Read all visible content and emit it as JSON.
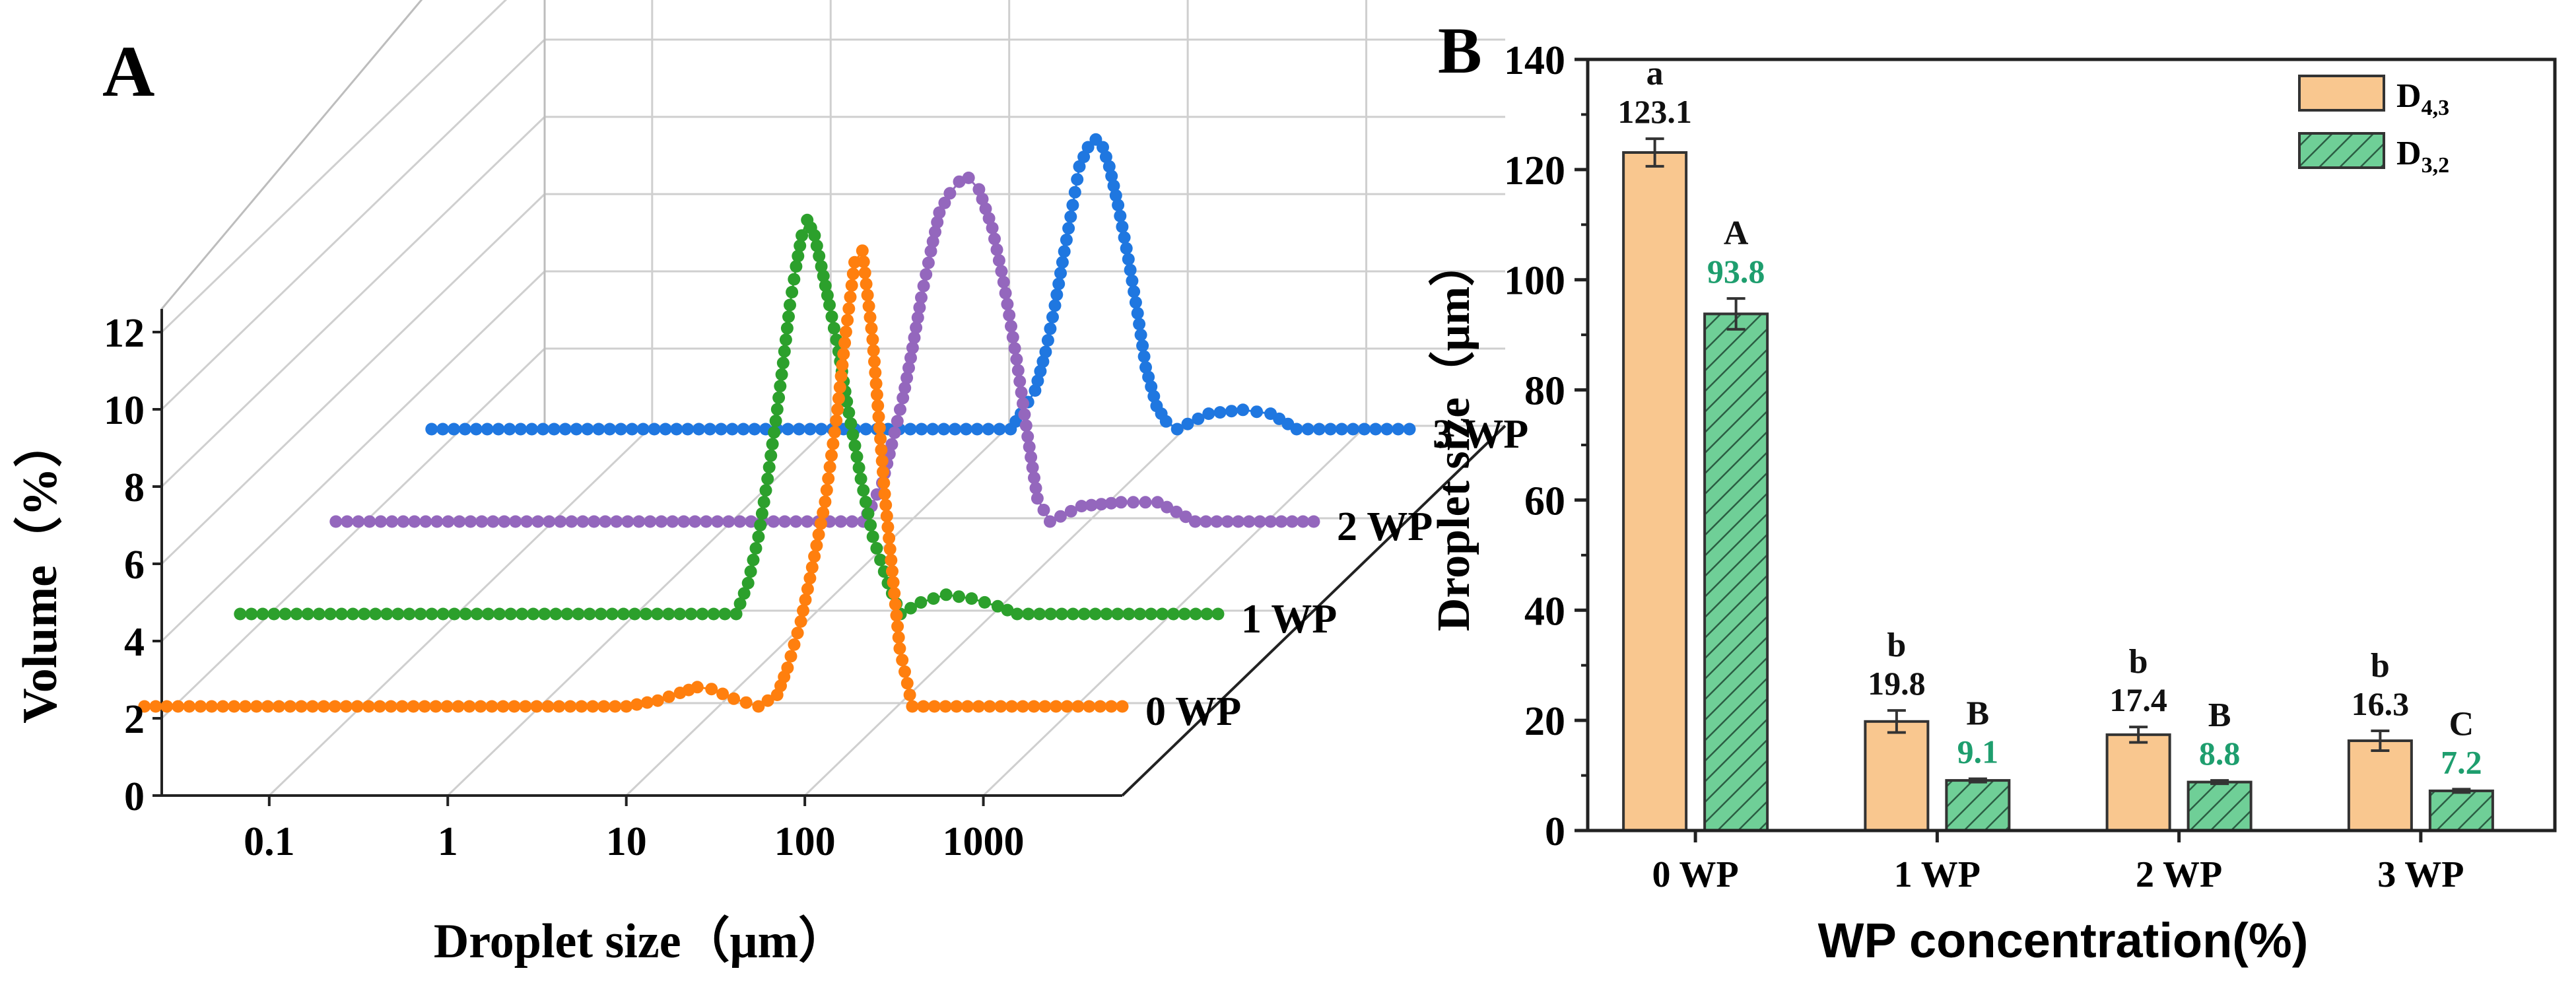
{
  "panel_a": {
    "letter": "A",
    "chart_data": {
      "type": "line",
      "title": "",
      "xlabel": "Droplet size（μm）",
      "ylabel": "Volume（%）",
      "x_scale": "log",
      "x_ticks": [
        "0.1",
        "1",
        "10",
        "100",
        "1000"
      ],
      "y_ticks": [
        "0",
        "2",
        "4",
        "6",
        "8",
        "10",
        "12"
      ],
      "ylim": [
        0,
        12
      ],
      "series": [
        {
          "name": "0 WP",
          "color": "#ff7f0e",
          "x": [
            0.02,
            10,
            15,
            20,
            25,
            30,
            40,
            55,
            70,
            80,
            95,
            110,
            130,
            150,
            170,
            190,
            210,
            240,
            280,
            340,
            400,
            6000
          ],
          "y": [
            0,
            0,
            0.15,
            0.35,
            0.5,
            0.45,
            0.2,
            0,
            0.3,
            1.0,
            2.2,
            3.6,
            5.3,
            7.4,
            9.7,
            11.5,
            11.8,
            9.5,
            5.5,
            1.5,
            0,
            0
          ]
        },
        {
          "name": "1 WP",
          "color": "#2ca02c",
          "x": [
            0.02,
            12,
            14,
            16,
            18,
            20,
            22,
            24,
            26,
            28,
            30,
            33,
            36,
            40,
            45,
            50,
            60,
            70,
            85,
            100,
            130,
            180,
            250,
            350,
            450,
            6000
          ],
          "y": [
            0,
            0,
            0.8,
            2.0,
            3.5,
            5.0,
            6.5,
            8.0,
            9.0,
            9.8,
            10.2,
            9.8,
            9.0,
            8.0,
            6.8,
            5.5,
            3.5,
            2.0,
            0.8,
            0,
            0.3,
            0.5,
            0.4,
            0.2,
            0,
            0
          ]
        },
        {
          "name": "2 WP",
          "color": "#9467bd",
          "x": [
            0.02,
            18,
            20,
            23,
            26,
            30,
            34,
            38,
            43,
            48,
            55,
            62,
            70,
            80,
            95,
            110,
            130,
            150,
            170,
            200,
            300,
            500,
            800,
            1300,
            6000
          ],
          "y": [
            0,
            0,
            0.4,
            1.0,
            2.0,
            3.2,
            4.5,
            5.8,
            7.0,
            8.0,
            8.5,
            8.8,
            8.9,
            8.6,
            7.6,
            6.2,
            4.2,
            2.2,
            0.6,
            0,
            0.4,
            0.5,
            0.5,
            0,
            0
          ]
        },
        {
          "name": "3 WP",
          "color": "#1f77e0",
          "x": [
            0.02,
            35,
            40,
            48,
            55,
            62,
            70,
            78,
            85,
            95,
            105,
            115,
            125,
            140,
            160,
            180,
            200,
            230,
            260,
            300,
            450,
            700,
            1000,
            1400,
            6000
          ],
          "y": [
            0,
            0,
            0.4,
            1.0,
            2.0,
            3.2,
            4.6,
            5.8,
            6.8,
            7.3,
            7.5,
            7.3,
            6.8,
            5.8,
            4.4,
            3.0,
            1.6,
            0.6,
            0.2,
            0,
            0.4,
            0.5,
            0.4,
            0,
            0
          ]
        }
      ]
    },
    "series_labels": [
      "0 WP",
      "1 WP",
      "2 WP",
      "3 WP"
    ]
  },
  "panel_b": {
    "letter": "B",
    "chart_data": {
      "type": "bar",
      "title": "",
      "xlabel": "WP concentration(%)",
      "ylabel": "Droplet size（μm）",
      "ylim": [
        0,
        140
      ],
      "y_ticks": [
        "0",
        "20",
        "40",
        "60",
        "80",
        "100",
        "120",
        "140"
      ],
      "categories": [
        "0 WP",
        "1 WP",
        "2 WP",
        "3 WP"
      ],
      "series": [
        {
          "name": "D4,3",
          "legend_main": "D",
          "legend_sub": "4,3",
          "color": "#f9c78f",
          "values": [
            123.1,
            19.8,
            17.4,
            16.3
          ],
          "value_labels": [
            "123.1",
            "19.8",
            "17.4",
            "16.3"
          ],
          "errors": [
            2.5,
            2.0,
            1.4,
            1.8
          ],
          "letters": [
            "a",
            "b",
            "b",
            "b"
          ],
          "label_color": "#111111"
        },
        {
          "name": "D3,2",
          "legend_main": "D",
          "legend_sub": "3,2",
          "color": "#6fcf97",
          "values": [
            93.8,
            9.1,
            8.8,
            7.2
          ],
          "value_labels": [
            "93.8",
            "9.1",
            "8.8",
            "7.2"
          ],
          "errors": [
            2.8,
            0.3,
            0.3,
            0.3
          ],
          "letters": [
            "A",
            "B",
            "B",
            "C"
          ],
          "label_color": "#1e9e6e"
        }
      ],
      "legend": "top-right"
    }
  }
}
